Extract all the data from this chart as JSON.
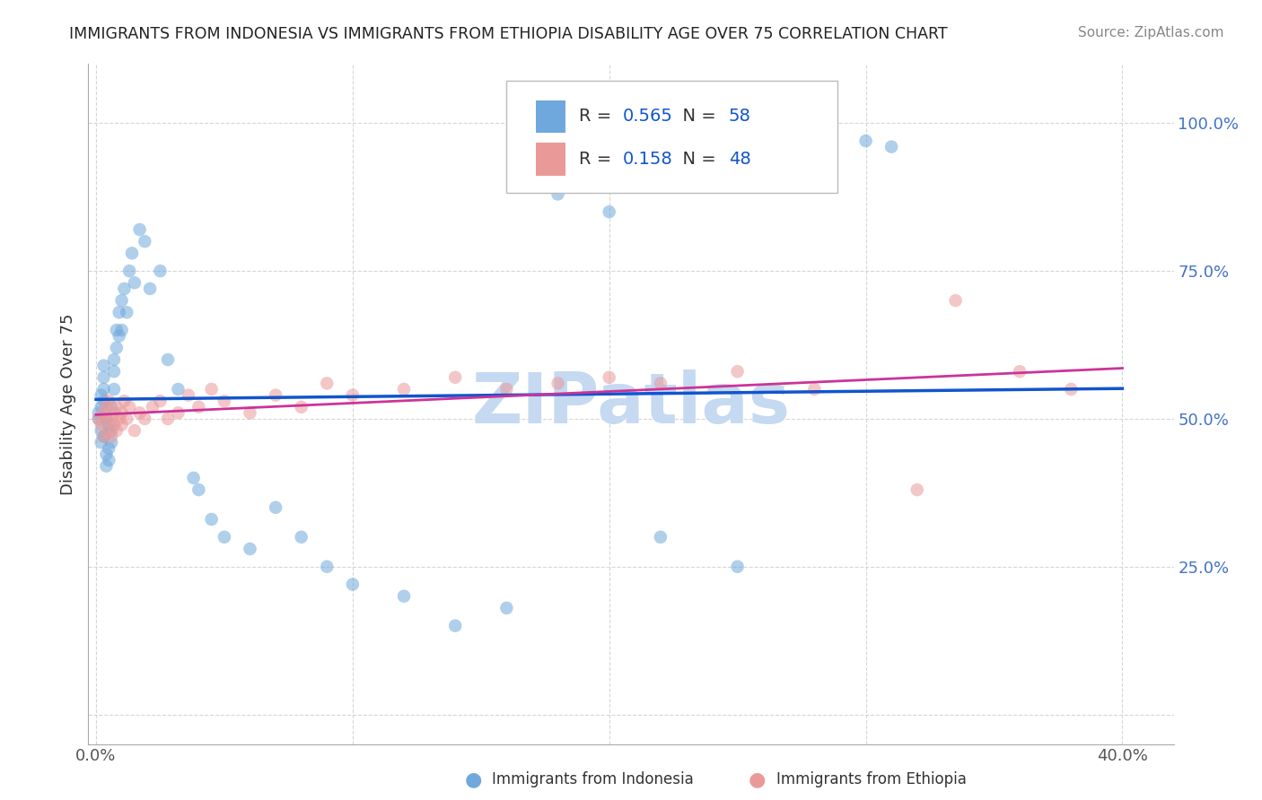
{
  "title": "IMMIGRANTS FROM INDONESIA VS IMMIGRANTS FROM ETHIOPIA DISABILITY AGE OVER 75 CORRELATION CHART",
  "source": "Source: ZipAtlas.com",
  "ylabel": "Disability Age Over 75",
  "xlim": [
    -0.003,
    0.42
  ],
  "ylim": [
    -0.05,
    1.1
  ],
  "x_ticks": [
    0.0,
    0.1,
    0.2,
    0.3,
    0.4
  ],
  "x_tick_labels": [
    "0.0%",
    "",
    "",
    "",
    "40.0%"
  ],
  "y_ticks": [
    0.0,
    0.25,
    0.5,
    0.75,
    1.0
  ],
  "y_tick_labels": [
    "",
    "25.0%",
    "50.0%",
    "75.0%",
    "100.0%"
  ],
  "indonesia_color": "#6fa8dc",
  "ethiopia_color": "#ea9999",
  "indonesia_line_color": "#1155cc",
  "ethiopia_line_color": "#cc3399",
  "stat_color": "#1155cc",
  "R_indonesia": 0.565,
  "N_indonesia": 58,
  "R_ethiopia": 0.158,
  "N_ethiopia": 48,
  "watermark_text": "ZIPatlas",
  "watermark_color": "#c5d9f1",
  "grid_color": "#cccccc",
  "bg_color": "#ffffff",
  "indo_x": [
    0.001,
    0.001,
    0.002,
    0.002,
    0.002,
    0.002,
    0.003,
    0.003,
    0.003,
    0.003,
    0.003,
    0.004,
    0.004,
    0.004,
    0.005,
    0.005,
    0.005,
    0.006,
    0.006,
    0.006,
    0.007,
    0.007,
    0.007,
    0.008,
    0.008,
    0.009,
    0.009,
    0.01,
    0.01,
    0.011,
    0.012,
    0.013,
    0.014,
    0.015,
    0.017,
    0.019,
    0.021,
    0.025,
    0.028,
    0.032,
    0.038,
    0.04,
    0.045,
    0.05,
    0.06,
    0.07,
    0.08,
    0.09,
    0.1,
    0.12,
    0.14,
    0.16,
    0.18,
    0.2,
    0.22,
    0.25,
    0.3,
    0.31
  ],
  "indo_y": [
    0.5,
    0.51,
    0.48,
    0.52,
    0.46,
    0.54,
    0.47,
    0.53,
    0.55,
    0.57,
    0.59,
    0.5,
    0.44,
    0.42,
    0.45,
    0.49,
    0.43,
    0.52,
    0.48,
    0.46,
    0.55,
    0.6,
    0.58,
    0.62,
    0.65,
    0.64,
    0.68,
    0.65,
    0.7,
    0.72,
    0.68,
    0.75,
    0.78,
    0.73,
    0.82,
    0.8,
    0.72,
    0.75,
    0.6,
    0.55,
    0.4,
    0.38,
    0.33,
    0.3,
    0.28,
    0.35,
    0.3,
    0.25,
    0.22,
    0.2,
    0.15,
    0.18,
    0.88,
    0.85,
    0.3,
    0.25,
    0.97,
    0.96
  ],
  "eth_x": [
    0.001,
    0.002,
    0.003,
    0.003,
    0.004,
    0.004,
    0.005,
    0.005,
    0.006,
    0.006,
    0.007,
    0.007,
    0.008,
    0.008,
    0.009,
    0.01,
    0.01,
    0.011,
    0.012,
    0.013,
    0.015,
    0.017,
    0.019,
    0.022,
    0.025,
    0.028,
    0.032,
    0.036,
    0.04,
    0.045,
    0.05,
    0.06,
    0.07,
    0.08,
    0.09,
    0.1,
    0.12,
    0.14,
    0.16,
    0.18,
    0.2,
    0.22,
    0.25,
    0.28,
    0.32,
    0.335,
    0.36,
    0.38
  ],
  "eth_y": [
    0.5,
    0.49,
    0.51,
    0.47,
    0.5,
    0.52,
    0.48,
    0.53,
    0.5,
    0.47,
    0.51,
    0.49,
    0.52,
    0.48,
    0.5,
    0.51,
    0.49,
    0.53,
    0.5,
    0.52,
    0.48,
    0.51,
    0.5,
    0.52,
    0.53,
    0.5,
    0.51,
    0.54,
    0.52,
    0.55,
    0.53,
    0.51,
    0.54,
    0.52,
    0.56,
    0.54,
    0.55,
    0.57,
    0.55,
    0.56,
    0.57,
    0.56,
    0.58,
    0.55,
    0.38,
    0.7,
    0.58,
    0.55
  ]
}
